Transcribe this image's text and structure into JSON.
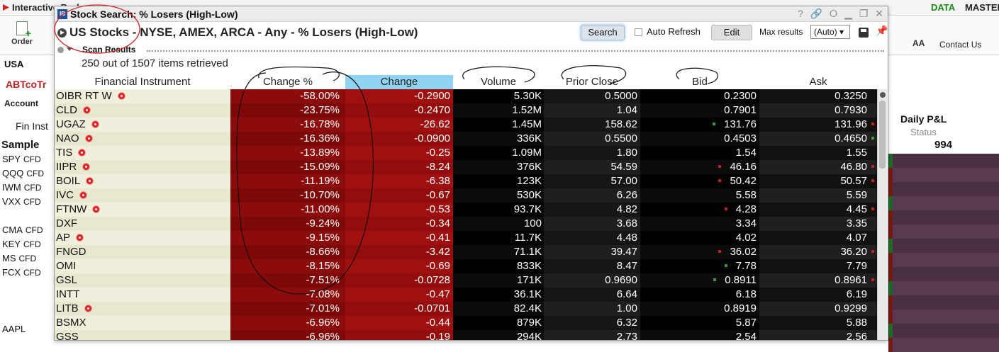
{
  "app": {
    "title": "Interactive Brokers",
    "data_label": "DATA",
    "master_label": "MASTER"
  },
  "toolbar": {
    "order_label": "Order",
    "aa_label": "AA",
    "contact_label": "Contact Us"
  },
  "left_panel": {
    "region": "USA",
    "page_tab": "ABTcoTr",
    "account_label": "Account",
    "fin_inst_label": "Fin Inst",
    "sample_label": "Sample",
    "symbols": [
      {
        "sym": "SPY",
        "type": "CFD"
      },
      {
        "sym": "QQQ",
        "type": "CFD"
      },
      {
        "sym": "IWM",
        "type": "CFD"
      },
      {
        "sym": "VXX",
        "type": "CFD"
      },
      {
        "sym": "CMA",
        "type": "CFD"
      },
      {
        "sym": "KEY",
        "type": "CFD"
      },
      {
        "sym": "MS",
        "type": "CFD"
      },
      {
        "sym": "FCX",
        "type": "CFD"
      },
      {
        "sym": "AAPL",
        "type": ""
      }
    ]
  },
  "right_panel": {
    "daily_pnl": "Daily P&L",
    "status": "Status",
    "value": "994"
  },
  "popup": {
    "title": "Stock Search: % Losers (High-Low)",
    "ib_icon": "IB",
    "scan_name": "US Stocks - NYSE, AMEX, ARCA - Any - % Losers (High-Low)",
    "search_label": "Search",
    "auto_refresh_label": "Auto Refresh",
    "auto_refresh_checked": false,
    "edit_label": "Edit",
    "max_results_label": "Max results",
    "max_results_value": "(Auto)",
    "scan_results_label": "Scan Results",
    "count_text": "250 out of 1507 items retrieved"
  },
  "table": {
    "columns": [
      "Financial Instrument",
      "Change %",
      "Change",
      "Volume",
      "Prior Close",
      "Bid",
      "Ask"
    ],
    "sorted_column_index": 2,
    "rows": [
      {
        "sym": "OIBR RT W",
        "news": true,
        "pct": "-58.00%",
        "chg": "-0.2900",
        "vol": "5.30K",
        "prior": "0.5000",
        "bid": "0.2300",
        "ask": "0.3250",
        "bid_tick": "",
        "ask_tick": ""
      },
      {
        "sym": "CLD",
        "news": true,
        "pct": "-23.75%",
        "chg": "-0.2470",
        "vol": "1.52M",
        "prior": "1.04",
        "bid": "0.7901",
        "ask": "0.7930",
        "bid_tick": "",
        "ask_tick": ""
      },
      {
        "sym": "UGAZ",
        "news": true,
        "pct": "-16.78%",
        "chg": "-26.62",
        "vol": "1.45M",
        "prior": "158.62",
        "bid": "131.76",
        "ask": "131.96",
        "bid_tick": "#3a9a3a",
        "ask_tick": "#c02020"
      },
      {
        "sym": "NAO",
        "news": true,
        "pct": "-16.36%",
        "chg": "-0.0900",
        "vol": "336K",
        "prior": "0.5500",
        "bid": "0.4503",
        "ask": "0.4650",
        "bid_tick": "",
        "ask_tick": "#3a9a3a"
      },
      {
        "sym": "TIS",
        "news": true,
        "pct": "-13.89%",
        "chg": "-0.25",
        "vol": "1.09M",
        "prior": "1.80",
        "bid": "1.54",
        "ask": "1.55",
        "bid_tick": "",
        "ask_tick": ""
      },
      {
        "sym": "IIPR",
        "news": true,
        "pct": "-15.09%",
        "chg": "-8.24",
        "vol": "376K",
        "prior": "54.59",
        "bid": "46.16",
        "ask": "46.80",
        "bid_tick": "#c02020",
        "ask_tick": "#c02020"
      },
      {
        "sym": "BOIL",
        "news": true,
        "pct": "-11.19%",
        "chg": "-6.38",
        "vol": "123K",
        "prior": "57.00",
        "bid": "50.42",
        "ask": "50.57",
        "bid_tick": "#c02020",
        "ask_tick": "#c02020"
      },
      {
        "sym": "IVC",
        "news": true,
        "pct": "-10.70%",
        "chg": "-0.67",
        "vol": "530K",
        "prior": "6.26",
        "bid": "5.58",
        "ask": "5.59",
        "bid_tick": "",
        "ask_tick": ""
      },
      {
        "sym": "FTNW",
        "news": true,
        "pct": "-11.00%",
        "chg": "-0.53",
        "vol": "93.7K",
        "prior": "4.82",
        "bid": "4.28",
        "ask": "4.45",
        "bid_tick": "#c02020",
        "ask_tick": "#c02020"
      },
      {
        "sym": "DXF",
        "news": false,
        "pct": "-9.24%",
        "chg": "-0.34",
        "vol": "100",
        "prior": "3.68",
        "bid": "3.34",
        "ask": "3.35",
        "bid_tick": "",
        "ask_tick": ""
      },
      {
        "sym": "AP",
        "news": true,
        "pct": "-9.15%",
        "chg": "-0.41",
        "vol": "11.7K",
        "prior": "4.48",
        "bid": "4.02",
        "ask": "4.07",
        "bid_tick": "",
        "ask_tick": ""
      },
      {
        "sym": "FNGD",
        "news": false,
        "pct": "-8.66%",
        "chg": "-3.42",
        "vol": "71.1K",
        "prior": "39.47",
        "bid": "36.02",
        "ask": "36.20",
        "bid_tick": "#c02020",
        "ask_tick": "#c02020"
      },
      {
        "sym": "OMI",
        "news": false,
        "pct": "-8.15%",
        "chg": "-0.69",
        "vol": "833K",
        "prior": "8.47",
        "bid": "7.78",
        "ask": "7.79",
        "bid_tick": "#3a9a3a",
        "ask_tick": ""
      },
      {
        "sym": "GSL",
        "news": false,
        "pct": "-7.51%",
        "chg": "-0.0728",
        "vol": "171K",
        "prior": "0.9690",
        "bid": "0.8911",
        "ask": "0.8961",
        "bid_tick": "#3a9a3a",
        "ask_tick": "#c02020"
      },
      {
        "sym": "INTT",
        "news": false,
        "pct": "-7.08%",
        "chg": "-0.47",
        "vol": "36.1K",
        "prior": "6.64",
        "bid": "6.18",
        "ask": "6.19",
        "bid_tick": "",
        "ask_tick": ""
      },
      {
        "sym": "LITB",
        "news": true,
        "pct": "-7.01%",
        "chg": "-0.0701",
        "vol": "82.4K",
        "prior": "1.00",
        "bid": "0.8919",
        "ask": "0.9299",
        "bid_tick": "",
        "ask_tick": ""
      },
      {
        "sym": "BSMX",
        "news": false,
        "pct": "-6.96%",
        "chg": "-0.44",
        "vol": "879K",
        "prior": "6.32",
        "bid": "5.87",
        "ask": "5.88",
        "bid_tick": "",
        "ask_tick": ""
      },
      {
        "sym": "GSS",
        "news": false,
        "pct": "-6.96%",
        "chg": "-0.19",
        "vol": "294K",
        "prior": "2.73",
        "bid": "2.54",
        "ask": "2.56",
        "bid_tick": "",
        "ask_tick": ""
      }
    ]
  },
  "icons": {
    "help": "help-icon",
    "link": "link-icon",
    "glasses": "glasses-icon",
    "minimize": "minimize-icon",
    "maximize": "maximize-icon",
    "close": "close-icon",
    "save": "save-icon",
    "pin": "pin-icon",
    "play": "play-icon",
    "news": "news-icon"
  },
  "colors": {
    "change_cell": "#8c0b0b",
    "sorted_header": "#8fd3f3",
    "up_tick": "#3a9a3a",
    "down_tick": "#c02020",
    "annotation": "#000000",
    "red_annotation": "#d02020"
  }
}
